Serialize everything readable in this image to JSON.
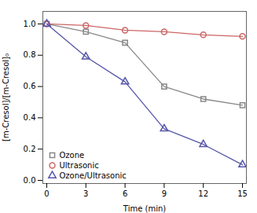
{
  "chart_data": {
    "type": "line",
    "x": [
      0,
      3,
      6,
      9,
      12,
      15
    ],
    "series": [
      {
        "name": "Ozone",
        "color": "#888888",
        "marker": "square",
        "line_style": "solid",
        "values": [
          1.0,
          0.95,
          0.88,
          0.6,
          0.52,
          0.48
        ]
      },
      {
        "name": "Ultrasonic",
        "color": "#cc6666",
        "marker": "circle",
        "line_style": "solid",
        "values": [
          1.0,
          0.99,
          0.96,
          0.95,
          0.93,
          0.92
        ]
      },
      {
        "name": "Ozone/Ultrasonic",
        "color": "#5555aa",
        "marker": "triangle",
        "line_style": "solid",
        "values": [
          1.0,
          0.79,
          0.63,
          0.33,
          0.23,
          0.1
        ]
      }
    ],
    "xlabel": "Time (min)",
    "ylabel": "[m-Cresol]/[m-Cresol]₀",
    "xlim": [
      -0.3,
      15.3
    ],
    "ylim": [
      -0.02,
      1.08
    ],
    "xticks": [
      0,
      3,
      6,
      9,
      12,
      15
    ],
    "yticks": [
      {
        "value": 0,
        "label": "0.0"
      },
      0.2,
      0.4,
      0.6,
      0.8,
      {
        "value": 1,
        "label": "1.0"
      }
    ],
    "legend": "lower left",
    "grid": false
  }
}
